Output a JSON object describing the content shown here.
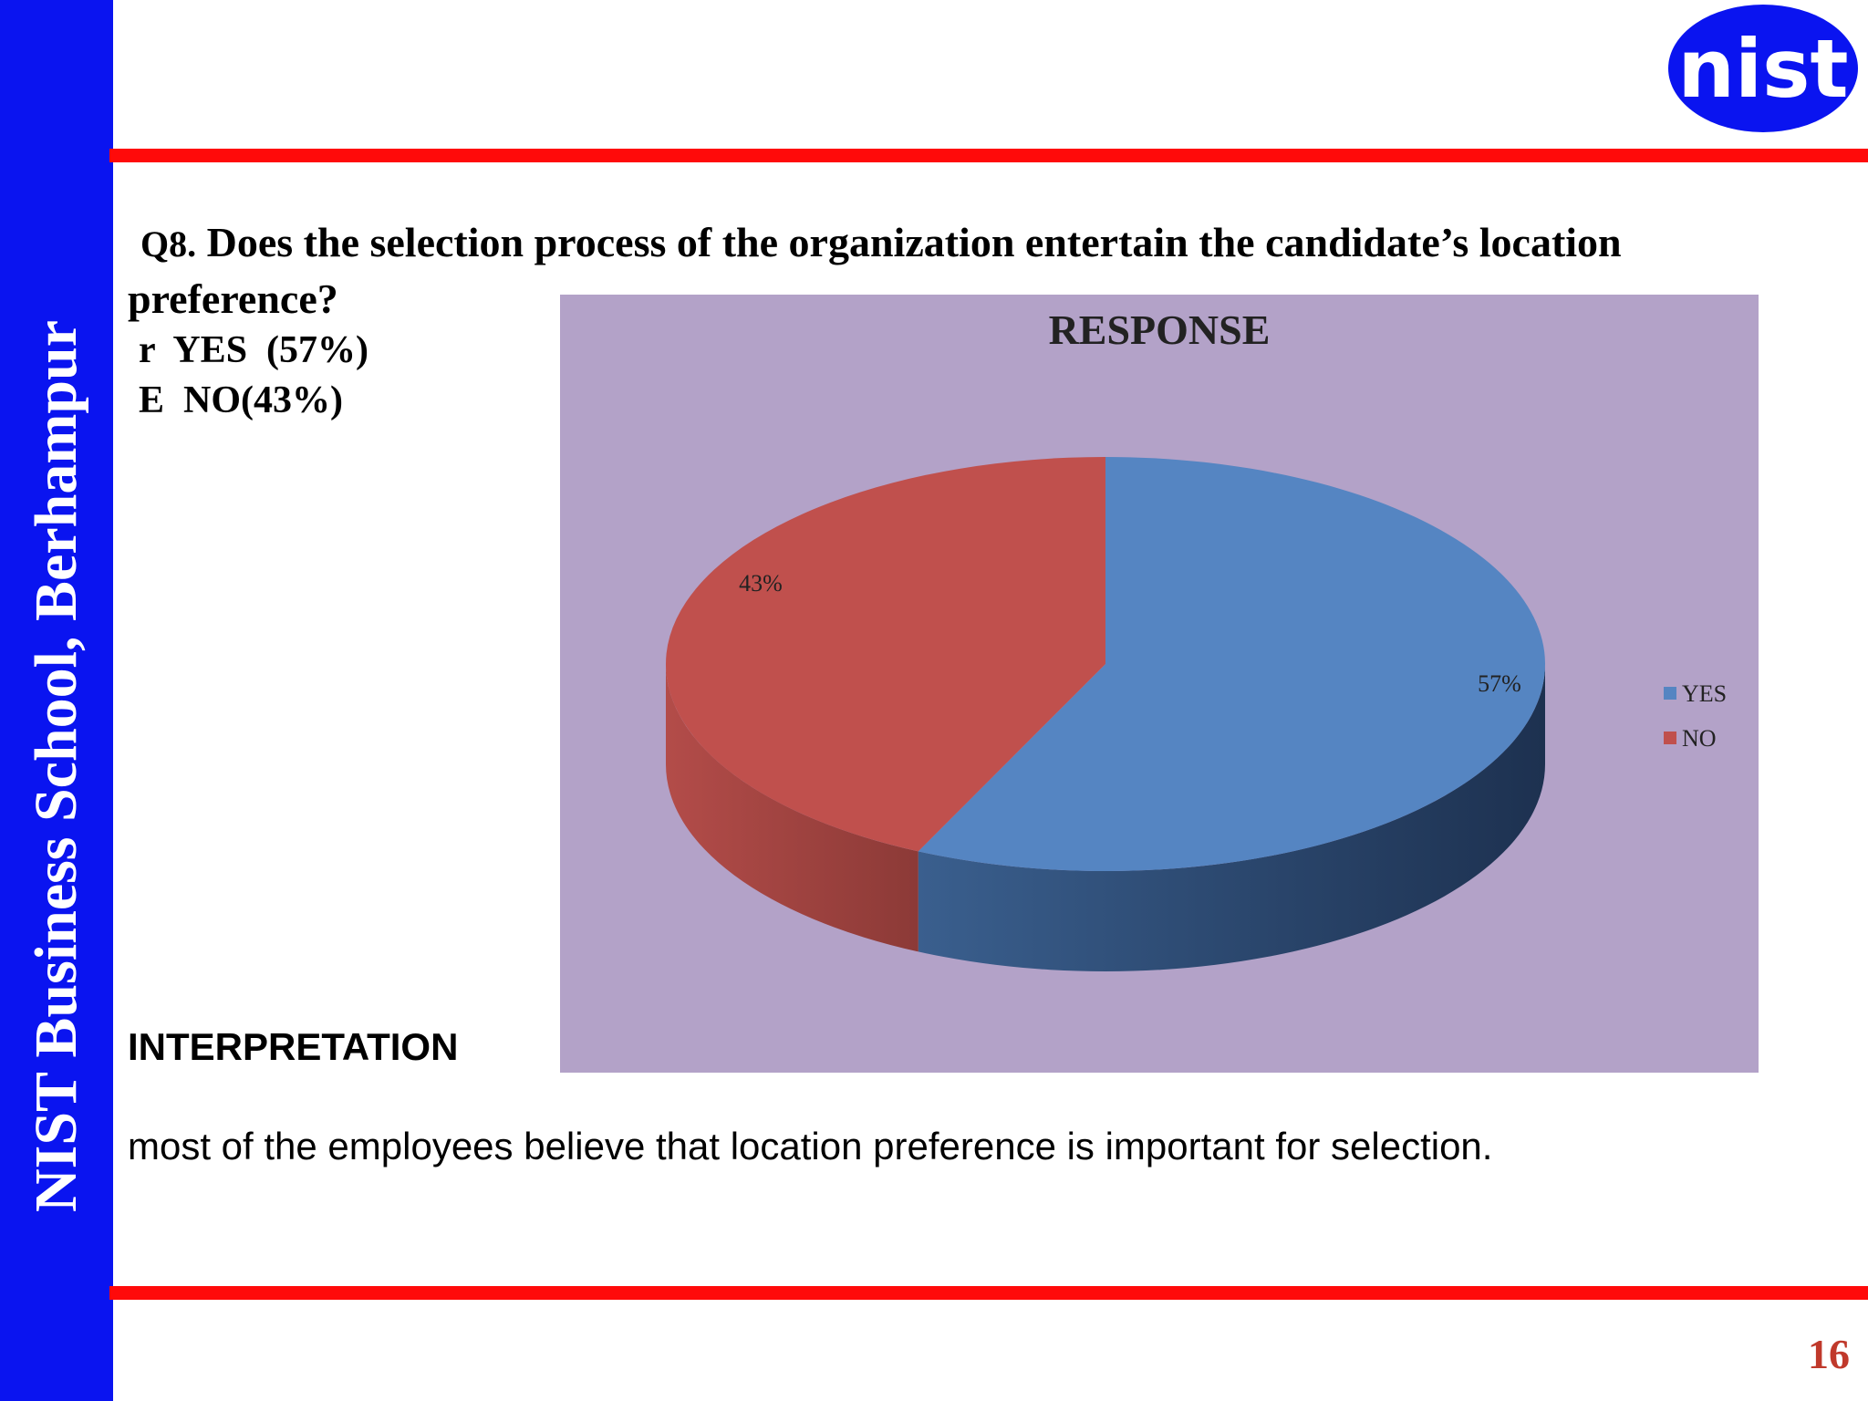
{
  "sidebar": {
    "text": "NIST Business School, Berhampur"
  },
  "logo": {
    "text": "nist",
    "color": "#0a14f0"
  },
  "question": {
    "number": "Q8.",
    "text": "Does the selection process of the organization entertain the candidate’s  location preference?"
  },
  "options": [
    {
      "bullet": "r",
      "text": "YES  (57%)"
    },
    {
      "bullet": "E",
      "text": "NO(43%)"
    }
  ],
  "chart_data": {
    "type": "pie",
    "title": "RESPONSE",
    "categories": [
      "YES",
      "NO"
    ],
    "values": [
      57,
      43
    ],
    "data_labels": [
      "57%",
      "43%"
    ],
    "colors": [
      "#5585c2",
      "#c0504d"
    ],
    "background": "#b3a2c8",
    "legend": "right",
    "style": "3d"
  },
  "interpretation": {
    "heading": "INTERPRETATION",
    "text": "most of the employees believe that location preference is important for selection."
  },
  "page_number": "16"
}
